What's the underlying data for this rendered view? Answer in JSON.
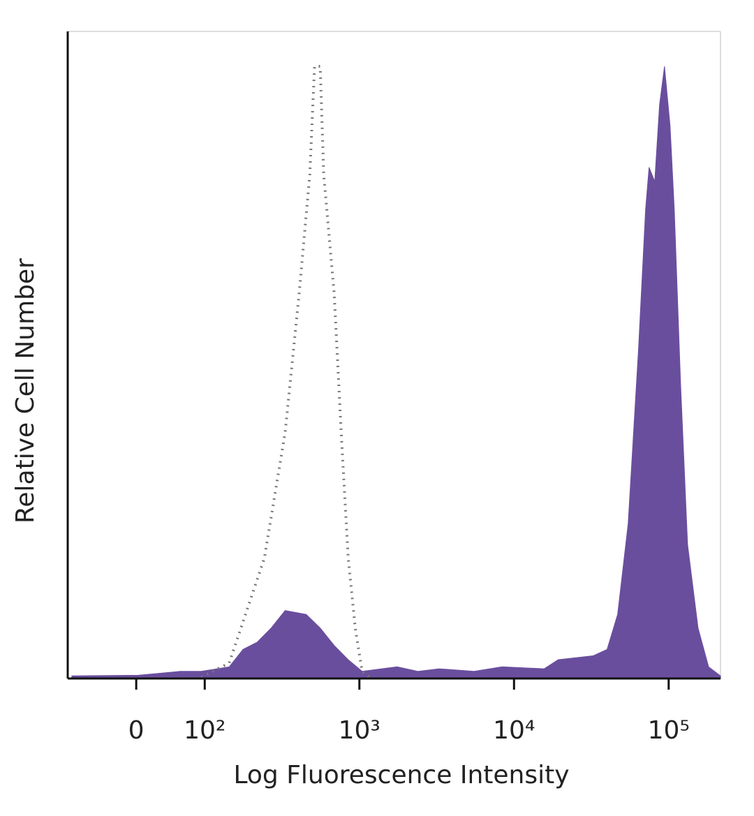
{
  "chart_data": {
    "type": "histogram_overlay",
    "xlabel": "Log Fluorescence Intensity",
    "ylabel": "Relative Cell Number",
    "xscale": "biexponential",
    "xlim": [
      -100,
      216300
    ],
    "ylim": [
      0,
      100
    ],
    "xticks": [
      0,
      {
        "value": 100,
        "label": "10²"
      },
      {
        "value": 1000,
        "label": "10³"
      },
      {
        "value": 10000,
        "label": "10⁴"
      },
      {
        "value": 100000,
        "label": "10⁵"
      }
    ],
    "series": [
      {
        "color": "#6a4e9e",
        "style": "filled",
        "x": [
          -94,
          3,
          64,
          95,
          144,
          177,
          218,
          269,
          331,
          453,
          558,
          687,
          847,
          1042,
          1754,
          2399,
          3281,
          5521,
          8375,
          15670,
          19280,
          32430,
          39990,
          46770,
          54700,
          63830,
          70930,
          74700,
          81270,
          87330,
          93970,
          102100,
          108700,
          119400,
          132500,
          154900,
          181200,
          216300
        ],
        "values": [
          0.4,
          0.5,
          1.1,
          1.1,
          1.8,
          4.5,
          5.6,
          7.8,
          10.5,
          9.9,
          7.8,
          5.1,
          2.9,
          1.1,
          1.8,
          1.1,
          1.5,
          1.1,
          1.8,
          1.5,
          2.9,
          3.5,
          4.5,
          9.9,
          23.9,
          50.9,
          72.5,
          79.0,
          76.8,
          88.7,
          94.6,
          85.4,
          72.5,
          45.5,
          20.7,
          7.8,
          1.8,
          0.4
        ]
      },
      {
        "color": "#777777",
        "style": "dotted",
        "x": [
          95,
          144,
          243,
          331,
          408,
          478,
          513,
          558,
          588,
          687,
          763,
          847,
          940,
          1042,
          1156
        ],
        "values": [
          0.2,
          2.4,
          18.6,
          38.0,
          59.5,
          77.9,
          94.6,
          94.6,
          77.9,
          59.5,
          38.0,
          18.6,
          7.8,
          1.1,
          0.2
        ]
      }
    ]
  }
}
